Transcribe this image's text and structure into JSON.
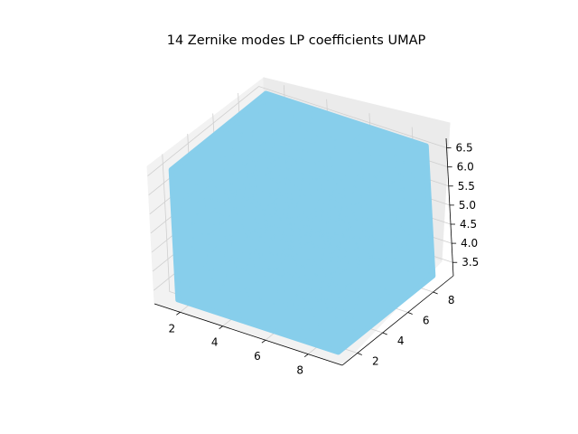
{
  "chart_data": {
    "type": "scatter",
    "dimensions": "3d",
    "title": "14 Zernike modes LP coefficients UMAP",
    "xlabel": "",
    "ylabel": "",
    "zlabel": "",
    "x_ticks": [
      "2",
      "4",
      "6",
      "8"
    ],
    "y_ticks": [
      "2",
      "4",
      "6",
      "8"
    ],
    "z_ticks": [
      "3.5",
      "4.0",
      "4.5",
      "5.0",
      "5.5",
      "6.0",
      "6.5"
    ],
    "xlim": [
      0.8,
      9.6
    ],
    "ylim": [
      0.8,
      9.6
    ],
    "zlim": [
      3.15,
      6.75
    ],
    "grid": true,
    "legend": false,
    "point_color": "#87CEEB",
    "cloud_extent": {
      "x_range": [
        1.5,
        9.0
      ],
      "y_range": [
        1.5,
        9.0
      ],
      "z_range": [
        3.2,
        6.6
      ]
    }
  }
}
